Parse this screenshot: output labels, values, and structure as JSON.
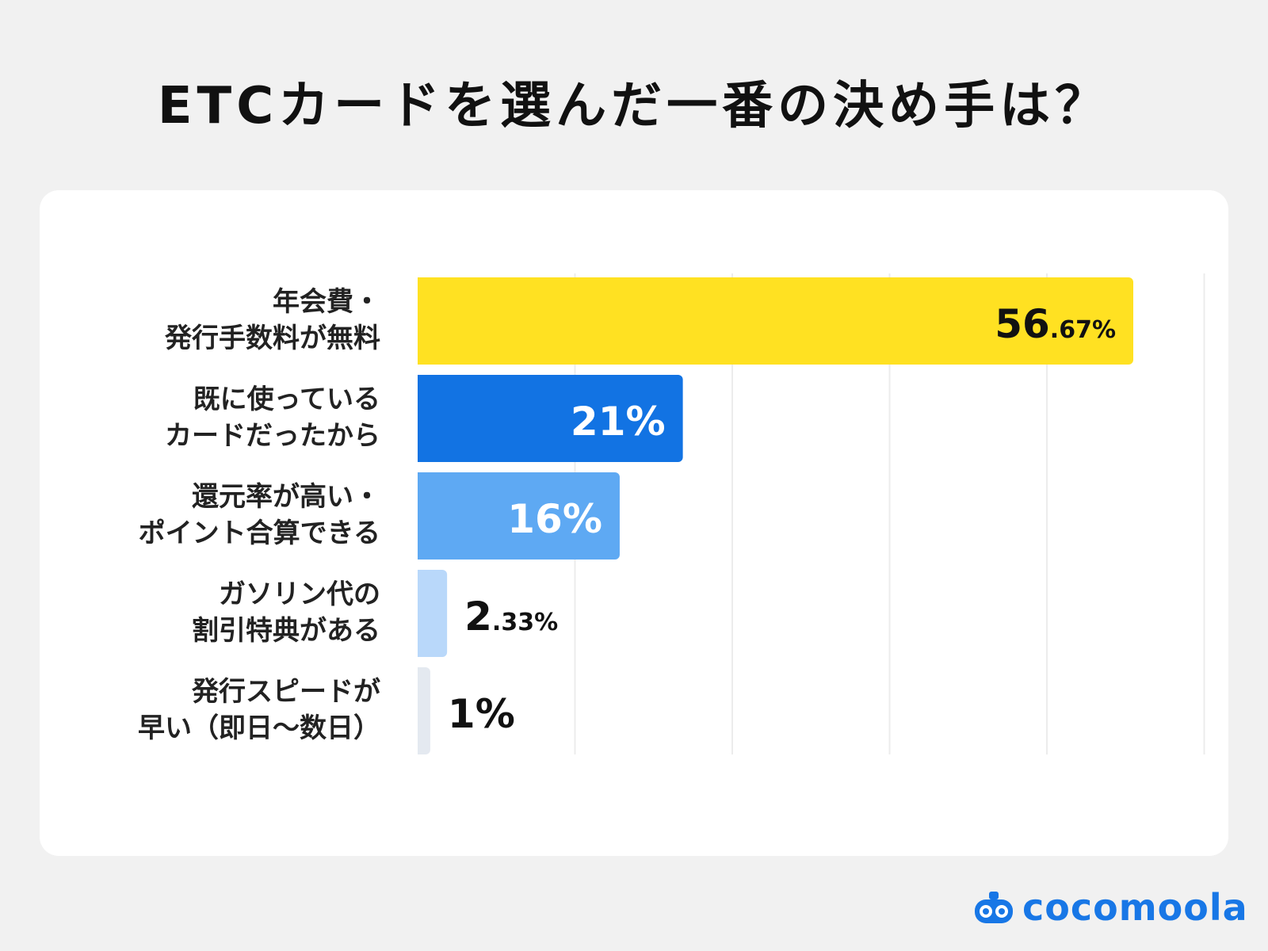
{
  "title": "ETCカードを選んだ一番の決め手は？",
  "brand": "cocomoola",
  "chart_data": {
    "type": "bar",
    "orientation": "horizontal",
    "categories": [
      [
        "年会費・",
        "発行手数料が無料"
      ],
      [
        "既に使っている",
        "カードだったから"
      ],
      [
        "還元率が高い・",
        "ポイント合算できる"
      ],
      [
        "ガソリン代の",
        "割引特典がある"
      ],
      [
        "発行スピードが",
        "早い（即日〜数日）"
      ]
    ],
    "values": [
      56.67,
      21,
      16,
      2.33,
      1
    ],
    "value_labels": [
      {
        "int": "56",
        "dec": ".67%"
      },
      {
        "int": "21%",
        "dec": ""
      },
      {
        "int": "16%",
        "dec": ""
      },
      {
        "int": "2",
        "dec": ".33%"
      },
      {
        "int": "1%",
        "dec": ""
      }
    ],
    "colors": [
      "#ffe122",
      "#1273e3",
      "#5ea9f3",
      "#b9d8fa",
      "#e4e9f0"
    ],
    "value_label_colors": [
      "#111111",
      "#ffffff",
      "#ffffff",
      "#111111",
      "#111111"
    ],
    "value_label_position": [
      "inside",
      "inside",
      "inside",
      "outside",
      "outside"
    ],
    "xlim": [
      0,
      60
    ],
    "grid": true
  }
}
